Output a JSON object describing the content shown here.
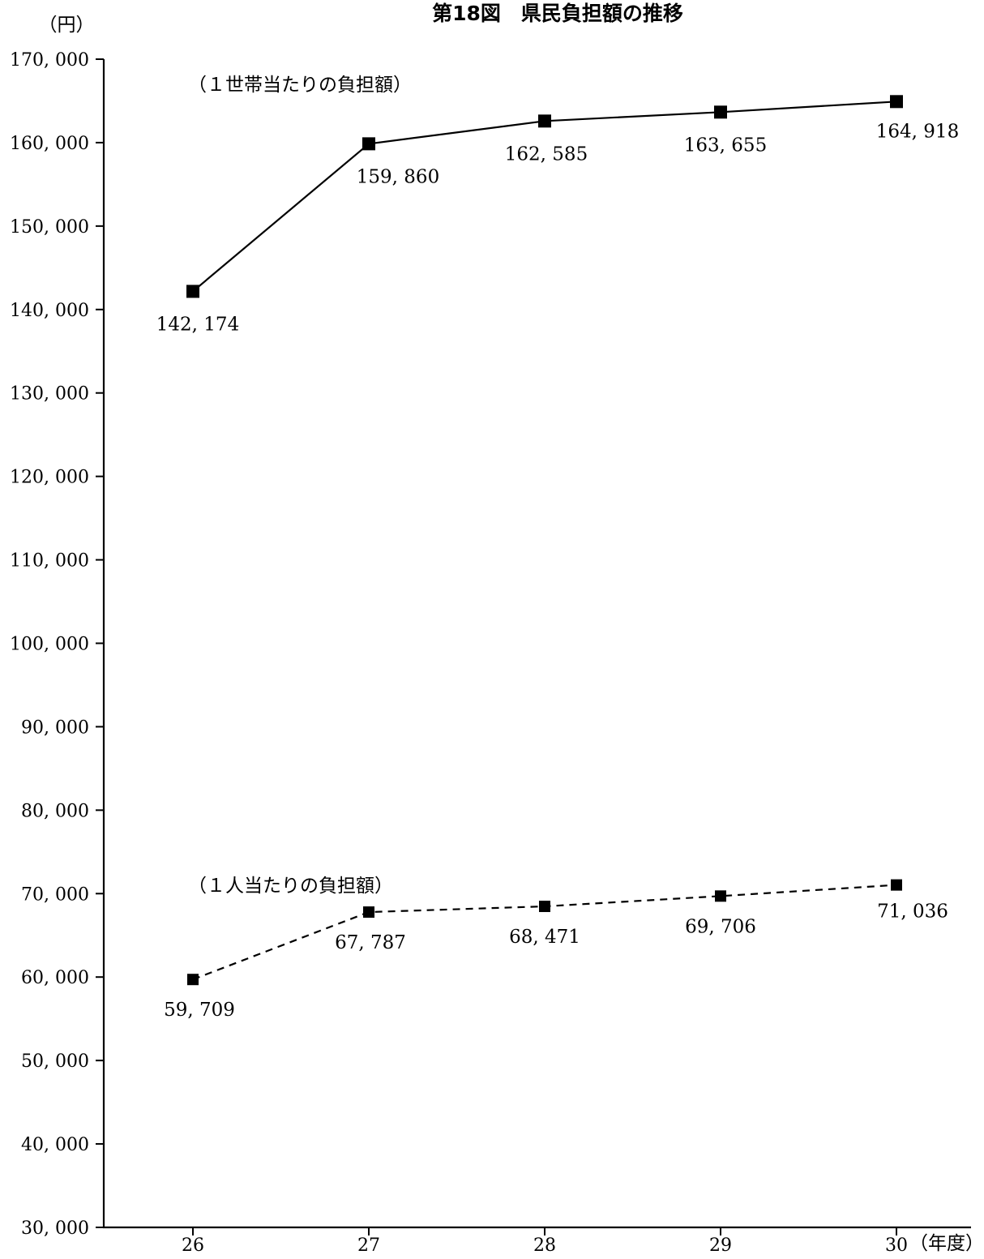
{
  "chart_data": {
    "type": "line",
    "title": "第18図　県民負担額の推移",
    "ylabel": "（円）",
    "xlabel": "（年度）",
    "categories": [
      "26",
      "27",
      "28",
      "29",
      "30"
    ],
    "ylim": [
      30000,
      170000
    ],
    "y_ticks": [
      30000,
      40000,
      50000,
      60000,
      70000,
      80000,
      90000,
      100000,
      110000,
      120000,
      130000,
      140000,
      150000,
      160000,
      170000
    ],
    "y_tick_labels": [
      "30, 000",
      "40, 000",
      "50, 000",
      "60, 000",
      "70, 000",
      "80, 000",
      "90, 000",
      "100, 000",
      "110, 000",
      "120, 000",
      "130, 000",
      "140, 000",
      "150, 000",
      "160, 000",
      "170, 000"
    ],
    "grid": false,
    "series": [
      {
        "name": "（１世帯当たりの負担額）",
        "values": [
          142174,
          159860,
          162585,
          163655,
          164918
        ],
        "labels": [
          "142, 174",
          "159, 860",
          "162, 585",
          "163, 655",
          "164, 918"
        ],
        "line_style": "solid",
        "marker": "square",
        "color": "#000000"
      },
      {
        "name": "（１人当たりの負担額）",
        "values": [
          59709,
          67787,
          68471,
          69706,
          71036
        ],
        "labels": [
          "59, 709",
          "67, 787",
          "68, 471",
          "69, 706",
          "71, 036"
        ],
        "line_style": "dashed",
        "marker": "square",
        "color": "#000000"
      }
    ]
  }
}
